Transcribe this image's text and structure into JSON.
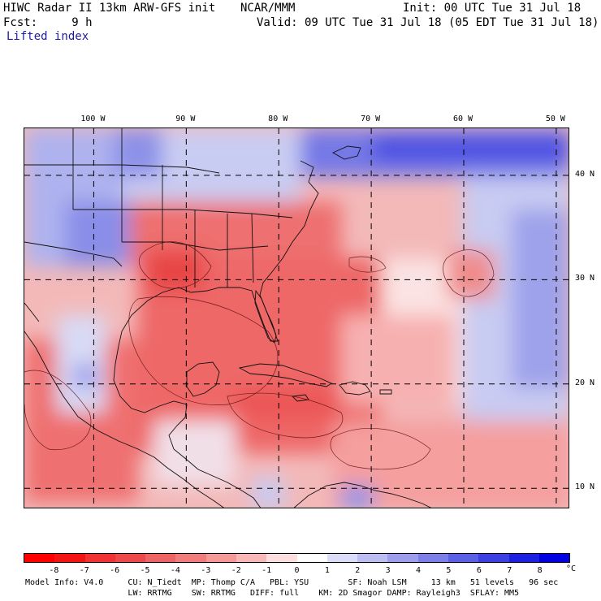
{
  "header": {
    "title": "HIWC Radar II 13km ARW-GFS init",
    "org": "NCAR/MMM",
    "init": "Init: 00 UTC Tue 31 Jul 18",
    "fcst": "Fcst:     9 h",
    "valid": "Valid: 09 UTC Tue 31 Jul 18 (05 EDT Tue 31 Jul 18)",
    "field": "Lifted index"
  },
  "map": {
    "longitude_labels": [
      "100 W",
      "90 W",
      "80 W",
      "70 W",
      "60 W",
      "50 W"
    ],
    "latitude_labels": [
      "40 N",
      "30 N",
      "20 N",
      "10 N"
    ],
    "longitudes": [
      -100,
      -90,
      -80,
      -70,
      -60,
      -50
    ],
    "latitudes": [
      40,
      30,
      20,
      10
    ],
    "lon_range": [
      -107.5,
      -48.5
    ],
    "lat_range": [
      8,
      44.5
    ],
    "gridlines": "dashed"
  },
  "colorbar": {
    "ticks": [
      "-8",
      "-7",
      "-6",
      "-5",
      "-4",
      "-3",
      "-2",
      "-1",
      "0",
      "1",
      "2",
      "3",
      "4",
      "5",
      "6",
      "7",
      "8"
    ],
    "unit": "°C",
    "colors": [
      "#ff0000",
      "#f41414",
      "#f03232",
      "#ec4a4a",
      "#ee6464",
      "#f07c7c",
      "#f49898",
      "#f8b8b8",
      "#fcdede",
      "#ffffff",
      "#dadcf8",
      "#bcbef2",
      "#9c9eec",
      "#7c7fe8",
      "#5c60e4",
      "#3c40e2",
      "#1c20e0",
      "#0000e0"
    ]
  },
  "model_info": {
    "line1": "Model Info: V4.0     CU: N_Tiedt  MP: Thomp C/A   PBL: YSU        SF: Noah LSM     13 km   51 levels   96 sec",
    "line2": "                     LW: RRTMG    SW: RRTMG   DIFF: full    KM: 2D Smagor DAMP: Rayleigh3  SFLAY: MM5"
  }
}
